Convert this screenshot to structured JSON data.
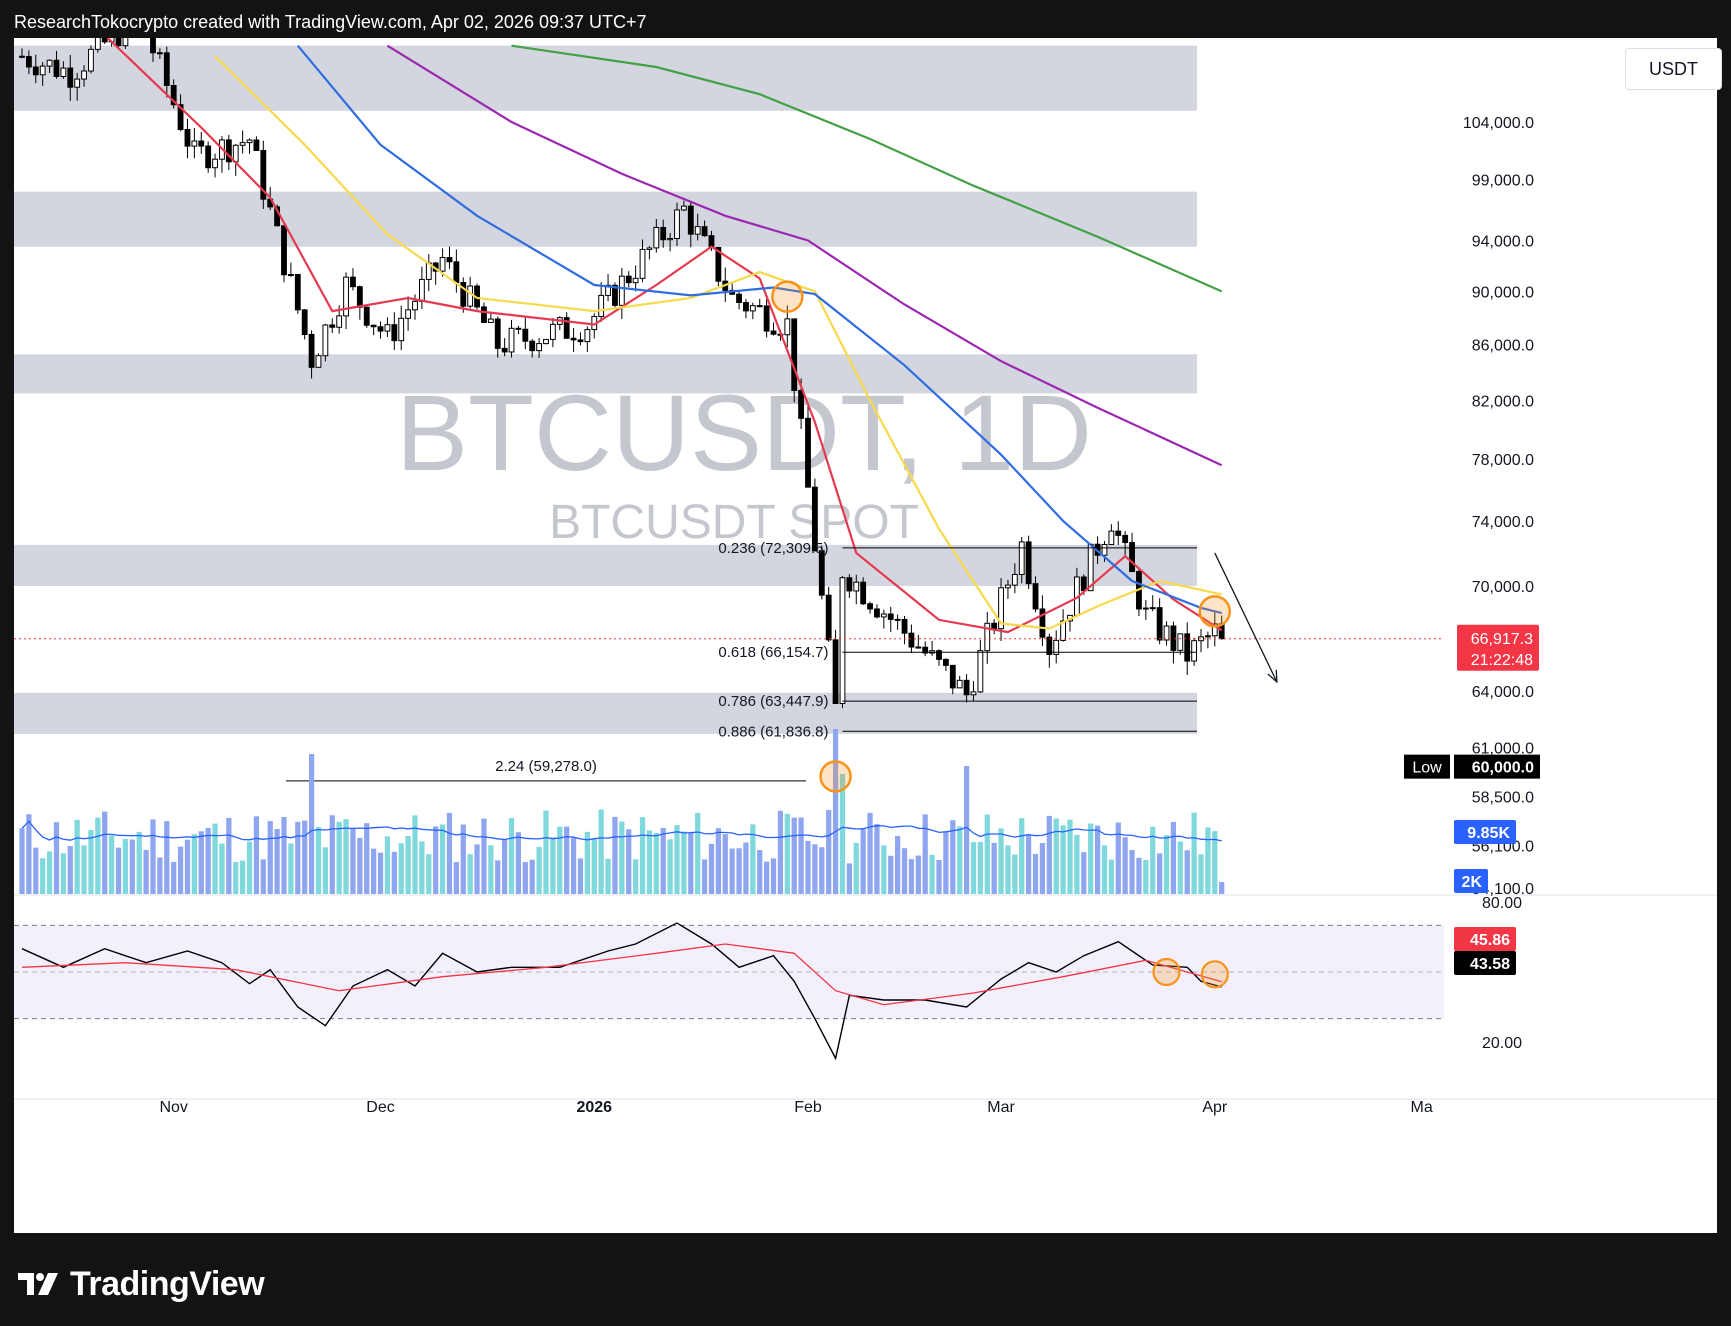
{
  "header": {
    "text": "ResearchTokocrypto created with TradingView.com, Apr 02, 2026 09:37 UTC+7"
  },
  "footer": {
    "brand": "TradingView"
  },
  "chart_data": {
    "type": "candlestick",
    "watermark": {
      "symbol": "BTCUSDT, 1D",
      "subtitle": "BTCUSDT SPOT"
    },
    "currency": "USDT",
    "price_axis": {
      "scale": "log",
      "ticks": [
        "104,000.0",
        "99,000.0",
        "94,000.0",
        "90,000.0",
        "86,000.0",
        "82,000.0",
        "78,000.0",
        "74,000.0",
        "70,000.0",
        "64,000.0",
        "61,000.0",
        "58,500.0",
        "56,100.0",
        "54,100.0"
      ],
      "tick_values": [
        104000,
        99000,
        94000,
        90000,
        86000,
        82000,
        78000,
        74000,
        70000,
        64000,
        61000,
        58500,
        56100,
        54100
      ],
      "visible_range": [
        52000,
        111000
      ]
    },
    "time_axis": {
      "labels": [
        "Nov",
        "Dec",
        "2026",
        "Feb",
        "Mar",
        "Apr",
        "Ma"
      ],
      "label_dates": [
        "2025-11-01",
        "2025-12-01",
        "2026-01-01",
        "2026-02-01",
        "2026-03-01",
        "2026-04-01",
        "2026-05-01"
      ],
      "visible_range": [
        "2025-10-10",
        "2026-05-01"
      ]
    },
    "last_price": {
      "value": 66917.3,
      "label": "66,917.3",
      "countdown": "21:22:48",
      "color": "#f23645"
    },
    "low_marker": {
      "tag": "Low",
      "label": "60,000.0",
      "value": 60000
    },
    "fib_levels": [
      {
        "ratio": "0.236",
        "label": "0.236 (72,309.5)",
        "value": 72309.5
      },
      {
        "ratio": "0.618",
        "label": "0.618 (66,154.7)",
        "value": 66154.7
      },
      {
        "ratio": "0.786",
        "label": "0.786 (63,447.9)",
        "value": 63447.9
      },
      {
        "ratio": "0.886",
        "label": "0.886 (61,836.8)",
        "value": 61836.8
      },
      {
        "ratio": "2.24",
        "label": "2.24 (59,278.0)",
        "value": 59278.0
      }
    ],
    "zones": [
      {
        "low": 105000,
        "high": 111000
      },
      {
        "low": 93500,
        "high": 98000
      },
      {
        "low": 82500,
        "high": 85300
      },
      {
        "low": 70000,
        "high": 72500
      },
      {
        "low": 61700,
        "high": 63900
      }
    ],
    "ohlc_keypoints": [
      {
        "date": "2025-10-10",
        "close": 110000
      },
      {
        "date": "2025-10-17",
        "close": 108500
      },
      {
        "date": "2025-10-27",
        "close": 114000
      },
      {
        "date": "2025-11-04",
        "close": 101000
      },
      {
        "date": "2025-11-12",
        "close": 102500
      },
      {
        "date": "2025-11-21",
        "close": 85000
      },
      {
        "date": "2025-11-26",
        "close": 90500
      },
      {
        "date": "2025-12-02",
        "close": 86500
      },
      {
        "date": "2025-12-10",
        "close": 92500
      },
      {
        "date": "2025-12-18",
        "close": 86000
      },
      {
        "date": "2025-12-31",
        "close": 87500
      },
      {
        "date": "2026-01-14",
        "close": 96500
      },
      {
        "date": "2026-01-21",
        "close": 89500
      },
      {
        "date": "2026-01-29",
        "close": 87500
      },
      {
        "date": "2026-02-05",
        "close": 63000
      },
      {
        "date": "2026-02-06",
        "close": 71000
      },
      {
        "date": "2026-02-24",
        "close": 63800
      },
      {
        "date": "2026-03-04",
        "close": 72500
      },
      {
        "date": "2026-03-08",
        "close": 66500
      },
      {
        "date": "2026-03-17",
        "close": 74200
      },
      {
        "date": "2026-03-22",
        "close": 68200
      },
      {
        "date": "2026-03-28",
        "close": 66000
      },
      {
        "date": "2026-04-01",
        "close": 67300
      },
      {
        "date": "2026-04-02",
        "close": 66917
      }
    ],
    "moving_averages": [
      {
        "color": "#e53950",
        "points": [
          [
            "2025-10-22",
            112000
          ],
          [
            "2025-11-05",
            103500
          ],
          [
            "2025-11-15",
            97500
          ],
          [
            "2025-11-24",
            88500
          ],
          [
            "2025-12-05",
            89500
          ],
          [
            "2025-12-15",
            88500
          ],
          [
            "2026-01-01",
            87500
          ],
          [
            "2026-01-10",
            90500
          ],
          [
            "2026-01-18",
            93500
          ],
          [
            "2026-01-25",
            91000
          ],
          [
            "2026-02-02",
            80500
          ],
          [
            "2026-02-08",
            72000
          ],
          [
            "2026-02-20",
            68000
          ],
          [
            "2026-03-02",
            67300
          ],
          [
            "2026-03-12",
            69300
          ],
          [
            "2026-03-19",
            71800
          ],
          [
            "2026-03-26",
            69200
          ],
          [
            "2026-04-02",
            67400
          ]
        ]
      },
      {
        "color": "#f7d94c",
        "points": [
          [
            "2025-11-07",
            110000
          ],
          [
            "2025-11-20",
            102000
          ],
          [
            "2025-12-02",
            94500
          ],
          [
            "2025-12-15",
            89500
          ],
          [
            "2026-01-01",
            88500
          ],
          [
            "2026-01-15",
            89500
          ],
          [
            "2026-01-25",
            91500
          ],
          [
            "2026-02-02",
            90000
          ],
          [
            "2026-02-10",
            82000
          ],
          [
            "2026-02-20",
            73500
          ],
          [
            "2026-03-01",
            67800
          ],
          [
            "2026-03-08",
            67500
          ],
          [
            "2026-03-15",
            68800
          ],
          [
            "2026-03-24",
            70300
          ],
          [
            "2026-04-02",
            69500
          ]
        ]
      },
      {
        "color": "#2f6de1",
        "points": [
          [
            "2025-11-19",
            111000
          ],
          [
            "2025-12-01",
            102000
          ],
          [
            "2025-12-15",
            96000
          ],
          [
            "2026-01-01",
            90500
          ],
          [
            "2026-01-15",
            89700
          ],
          [
            "2026-01-27",
            90300
          ],
          [
            "2026-02-02",
            89800
          ],
          [
            "2026-02-15",
            84500
          ],
          [
            "2026-03-01",
            78300
          ],
          [
            "2026-03-10",
            74000
          ],
          [
            "2026-03-20",
            70300
          ],
          [
            "2026-03-30",
            68700
          ],
          [
            "2026-04-02",
            68400
          ]
        ]
      },
      {
        "color": "#9c27b0",
        "points": [
          [
            "2025-12-02",
            111000
          ],
          [
            "2025-12-20",
            104000
          ],
          [
            "2026-01-05",
            99500
          ],
          [
            "2026-01-20",
            96000
          ],
          [
            "2026-02-01",
            94000
          ],
          [
            "2026-02-15",
            89000
          ],
          [
            "2026-03-01",
            84800
          ],
          [
            "2026-03-15",
            81500
          ],
          [
            "2026-04-02",
            77600
          ]
        ]
      },
      {
        "color": "#43a047",
        "points": [
          [
            "2025-12-20",
            111000
          ],
          [
            "2026-01-10",
            109000
          ],
          [
            "2026-01-25",
            106500
          ],
          [
            "2026-02-10",
            102500
          ],
          [
            "2026-02-25",
            98500
          ],
          [
            "2026-03-15",
            94300
          ],
          [
            "2026-04-02",
            90000
          ]
        ]
      }
    ],
    "volume": {
      "last_value_label": "9.85K",
      "scale_label": "2K",
      "ma_color": "#2962ff",
      "up_color": "#7fd8dc",
      "down_color": "#8ea6f0"
    },
    "rsi": {
      "tick_labels": [
        "80.00",
        "20.00"
      ],
      "tick_values": [
        80,
        20
      ],
      "band": [
        30,
        70
      ],
      "rsi_value": 43.58,
      "rsi_label": "43.58",
      "ma_value": 45.86,
      "ma_label": "45.86",
      "rsi_color": "#000000",
      "ma_color": "#f23645",
      "points": [
        [
          "2025-10-10",
          60
        ],
        [
          "2025-10-16",
          52
        ],
        [
          "2025-10-22",
          60
        ],
        [
          "2025-10-28",
          54
        ],
        [
          "2025-11-03",
          59
        ],
        [
          "2025-11-08",
          54
        ],
        [
          "2025-11-12",
          45
        ],
        [
          "2025-11-15",
          51
        ],
        [
          "2025-11-19",
          35
        ],
        [
          "2025-11-23",
          27
        ],
        [
          "2025-11-27",
          44
        ],
        [
          "2025-12-02",
          51
        ],
        [
          "2025-12-06",
          44
        ],
        [
          "2025-12-10",
          58
        ],
        [
          "2025-12-15",
          50
        ],
        [
          "2025-12-20",
          52
        ],
        [
          "2025-12-27",
          52
        ],
        [
          "2026-01-03",
          59
        ],
        [
          "2026-01-07",
          62
        ],
        [
          "2026-01-13",
          71
        ],
        [
          "2026-01-18",
          62
        ],
        [
          "2026-01-22",
          52
        ],
        [
          "2026-01-27",
          57
        ],
        [
          "2026-01-30",
          46
        ],
        [
          "2026-02-02",
          30
        ],
        [
          "2026-02-05",
          13
        ],
        [
          "2026-02-07",
          40
        ],
        [
          "2026-02-12",
          38
        ],
        [
          "2026-02-18",
          38
        ],
        [
          "2026-02-24",
          35
        ],
        [
          "2026-03-01",
          47
        ],
        [
          "2026-03-05",
          54
        ],
        [
          "2026-03-09",
          50
        ],
        [
          "2026-03-13",
          57
        ],
        [
          "2026-03-18",
          63
        ],
        [
          "2026-03-23",
          53
        ],
        [
          "2026-03-28",
          52
        ],
        [
          "2026-03-30",
          46
        ],
        [
          "2026-04-02",
          43.58
        ]
      ],
      "ma_points": [
        [
          "2025-10-10",
          52
        ],
        [
          "2025-10-25",
          54
        ],
        [
          "2025-11-10",
          51
        ],
        [
          "2025-11-25",
          42
        ],
        [
          "2025-12-10",
          48
        ],
        [
          "2025-12-25",
          52
        ],
        [
          "2026-01-10",
          58
        ],
        [
          "2026-01-20",
          62
        ],
        [
          "2026-01-30",
          58
        ],
        [
          "2026-02-05",
          42
        ],
        [
          "2026-02-12",
          36
        ],
        [
          "2026-02-25",
          41
        ],
        [
          "2026-03-10",
          48
        ],
        [
          "2026-03-22",
          55
        ],
        [
          "2026-04-02",
          45.86
        ]
      ]
    },
    "annotations": [
      {
        "kind": "circle",
        "date": "2026-01-29",
        "price": 89600
      },
      {
        "kind": "circle",
        "date": "2026-04-01",
        "price": 68500
      },
      {
        "kind": "circle",
        "date": "2026-02-05",
        "price": 59500
      },
      {
        "kind": "rsi-circle",
        "date": "2026-03-25",
        "rsi": 50
      },
      {
        "kind": "rsi-circle",
        "date": "2026-04-01",
        "rsi": 49
      },
      {
        "kind": "arrow",
        "from_date": "2026-04-01",
        "from_price": 72000,
        "to_date": "2026-04-10",
        "to_price": 64500
      }
    ],
    "colors": {
      "zone": "#d1d4dc",
      "watermark": "#b2b5be",
      "up": "#ffffff",
      "down": "#000000",
      "annotation": "#f7931a",
      "rsi_band": "#f3f0fb"
    }
  }
}
